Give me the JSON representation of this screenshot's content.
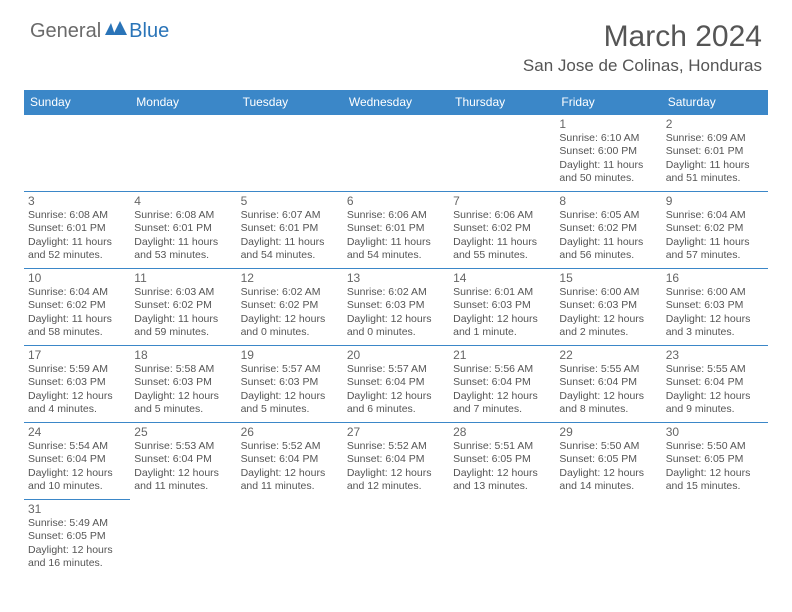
{
  "logo": {
    "part1": "General",
    "part2": "Blue"
  },
  "title": "March 2024",
  "location": "San Jose de Colinas, Honduras",
  "colors": {
    "header_bg": "#3b87c8",
    "header_text": "#ffffff",
    "text": "#555555",
    "logo_gray": "#6a6a6a",
    "logo_blue": "#2a74b8",
    "border": "#3b87c8",
    "background": "#ffffff"
  },
  "typography": {
    "title_fontsize": 30,
    "location_fontsize": 17,
    "header_fontsize": 12,
    "daynum_fontsize": 12,
    "detail_fontsize": 10.5
  },
  "weekdays": [
    "Sunday",
    "Monday",
    "Tuesday",
    "Wednesday",
    "Thursday",
    "Friday",
    "Saturday"
  ],
  "weeks": [
    [
      null,
      null,
      null,
      null,
      null,
      {
        "n": "1",
        "sr": "Sunrise: 6:10 AM",
        "ss": "Sunset: 6:00 PM",
        "dl1": "Daylight: 11 hours",
        "dl2": "and 50 minutes."
      },
      {
        "n": "2",
        "sr": "Sunrise: 6:09 AM",
        "ss": "Sunset: 6:01 PM",
        "dl1": "Daylight: 11 hours",
        "dl2": "and 51 minutes."
      }
    ],
    [
      {
        "n": "3",
        "sr": "Sunrise: 6:08 AM",
        "ss": "Sunset: 6:01 PM",
        "dl1": "Daylight: 11 hours",
        "dl2": "and 52 minutes."
      },
      {
        "n": "4",
        "sr": "Sunrise: 6:08 AM",
        "ss": "Sunset: 6:01 PM",
        "dl1": "Daylight: 11 hours",
        "dl2": "and 53 minutes."
      },
      {
        "n": "5",
        "sr": "Sunrise: 6:07 AM",
        "ss": "Sunset: 6:01 PM",
        "dl1": "Daylight: 11 hours",
        "dl2": "and 54 minutes."
      },
      {
        "n": "6",
        "sr": "Sunrise: 6:06 AM",
        "ss": "Sunset: 6:01 PM",
        "dl1": "Daylight: 11 hours",
        "dl2": "and 54 minutes."
      },
      {
        "n": "7",
        "sr": "Sunrise: 6:06 AM",
        "ss": "Sunset: 6:02 PM",
        "dl1": "Daylight: 11 hours",
        "dl2": "and 55 minutes."
      },
      {
        "n": "8",
        "sr": "Sunrise: 6:05 AM",
        "ss": "Sunset: 6:02 PM",
        "dl1": "Daylight: 11 hours",
        "dl2": "and 56 minutes."
      },
      {
        "n": "9",
        "sr": "Sunrise: 6:04 AM",
        "ss": "Sunset: 6:02 PM",
        "dl1": "Daylight: 11 hours",
        "dl2": "and 57 minutes."
      }
    ],
    [
      {
        "n": "10",
        "sr": "Sunrise: 6:04 AM",
        "ss": "Sunset: 6:02 PM",
        "dl1": "Daylight: 11 hours",
        "dl2": "and 58 minutes."
      },
      {
        "n": "11",
        "sr": "Sunrise: 6:03 AM",
        "ss": "Sunset: 6:02 PM",
        "dl1": "Daylight: 11 hours",
        "dl2": "and 59 minutes."
      },
      {
        "n": "12",
        "sr": "Sunrise: 6:02 AM",
        "ss": "Sunset: 6:02 PM",
        "dl1": "Daylight: 12 hours",
        "dl2": "and 0 minutes."
      },
      {
        "n": "13",
        "sr": "Sunrise: 6:02 AM",
        "ss": "Sunset: 6:03 PM",
        "dl1": "Daylight: 12 hours",
        "dl2": "and 0 minutes."
      },
      {
        "n": "14",
        "sr": "Sunrise: 6:01 AM",
        "ss": "Sunset: 6:03 PM",
        "dl1": "Daylight: 12 hours",
        "dl2": "and 1 minute."
      },
      {
        "n": "15",
        "sr": "Sunrise: 6:00 AM",
        "ss": "Sunset: 6:03 PM",
        "dl1": "Daylight: 12 hours",
        "dl2": "and 2 minutes."
      },
      {
        "n": "16",
        "sr": "Sunrise: 6:00 AM",
        "ss": "Sunset: 6:03 PM",
        "dl1": "Daylight: 12 hours",
        "dl2": "and 3 minutes."
      }
    ],
    [
      {
        "n": "17",
        "sr": "Sunrise: 5:59 AM",
        "ss": "Sunset: 6:03 PM",
        "dl1": "Daylight: 12 hours",
        "dl2": "and 4 minutes."
      },
      {
        "n": "18",
        "sr": "Sunrise: 5:58 AM",
        "ss": "Sunset: 6:03 PM",
        "dl1": "Daylight: 12 hours",
        "dl2": "and 5 minutes."
      },
      {
        "n": "19",
        "sr": "Sunrise: 5:57 AM",
        "ss": "Sunset: 6:03 PM",
        "dl1": "Daylight: 12 hours",
        "dl2": "and 5 minutes."
      },
      {
        "n": "20",
        "sr": "Sunrise: 5:57 AM",
        "ss": "Sunset: 6:04 PM",
        "dl1": "Daylight: 12 hours",
        "dl2": "and 6 minutes."
      },
      {
        "n": "21",
        "sr": "Sunrise: 5:56 AM",
        "ss": "Sunset: 6:04 PM",
        "dl1": "Daylight: 12 hours",
        "dl2": "and 7 minutes."
      },
      {
        "n": "22",
        "sr": "Sunrise: 5:55 AM",
        "ss": "Sunset: 6:04 PM",
        "dl1": "Daylight: 12 hours",
        "dl2": "and 8 minutes."
      },
      {
        "n": "23",
        "sr": "Sunrise: 5:55 AM",
        "ss": "Sunset: 6:04 PM",
        "dl1": "Daylight: 12 hours",
        "dl2": "and 9 minutes."
      }
    ],
    [
      {
        "n": "24",
        "sr": "Sunrise: 5:54 AM",
        "ss": "Sunset: 6:04 PM",
        "dl1": "Daylight: 12 hours",
        "dl2": "and 10 minutes."
      },
      {
        "n": "25",
        "sr": "Sunrise: 5:53 AM",
        "ss": "Sunset: 6:04 PM",
        "dl1": "Daylight: 12 hours",
        "dl2": "and 11 minutes."
      },
      {
        "n": "26",
        "sr": "Sunrise: 5:52 AM",
        "ss": "Sunset: 6:04 PM",
        "dl1": "Daylight: 12 hours",
        "dl2": "and 11 minutes."
      },
      {
        "n": "27",
        "sr": "Sunrise: 5:52 AM",
        "ss": "Sunset: 6:04 PM",
        "dl1": "Daylight: 12 hours",
        "dl2": "and 12 minutes."
      },
      {
        "n": "28",
        "sr": "Sunrise: 5:51 AM",
        "ss": "Sunset: 6:05 PM",
        "dl1": "Daylight: 12 hours",
        "dl2": "and 13 minutes."
      },
      {
        "n": "29",
        "sr": "Sunrise: 5:50 AM",
        "ss": "Sunset: 6:05 PM",
        "dl1": "Daylight: 12 hours",
        "dl2": "and 14 minutes."
      },
      {
        "n": "30",
        "sr": "Sunrise: 5:50 AM",
        "ss": "Sunset: 6:05 PM",
        "dl1": "Daylight: 12 hours",
        "dl2": "and 15 minutes."
      }
    ],
    [
      {
        "n": "31",
        "sr": "Sunrise: 5:49 AM",
        "ss": "Sunset: 6:05 PM",
        "dl1": "Daylight: 12 hours",
        "dl2": "and 16 minutes."
      },
      null,
      null,
      null,
      null,
      null,
      null
    ]
  ]
}
